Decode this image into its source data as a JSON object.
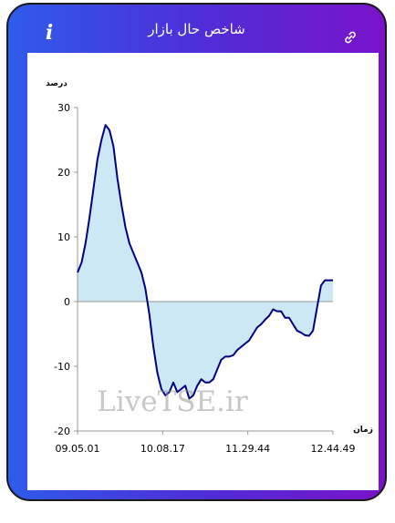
{
  "header": {
    "title": "شاخص حال بازار",
    "info_icon": "info-icon",
    "info_glyph": "i",
    "link_icon": "link-icon"
  },
  "colors": {
    "gradient_start": "#2f5bea",
    "gradient_end": "#7a12c9",
    "line": "#000080",
    "fill": "#cce8f4"
  },
  "watermark": "LiveTSE.ir",
  "chart_data": {
    "type": "area",
    "ylabel": "درصد",
    "xlabel": "زمان",
    "ylim": [
      -20,
      30
    ],
    "yticks": [
      30,
      20,
      10,
      0,
      -10,
      -20
    ],
    "xticks": [
      "09.05.01",
      "10.08.17",
      "11.29.44",
      "12.44.49"
    ],
    "grid": false,
    "series": [
      {
        "x": [
          0,
          1,
          2,
          3,
          4,
          5,
          6,
          7,
          8,
          9,
          10,
          11,
          12,
          13,
          14,
          15,
          16,
          17,
          18,
          19,
          20,
          21,
          22,
          23,
          24,
          25,
          26,
          27,
          28,
          29,
          30,
          31,
          32,
          33,
          34,
          35,
          36,
          37,
          38,
          39,
          40,
          41,
          42,
          43,
          44,
          45,
          46,
          47,
          48,
          49,
          50,
          51,
          52,
          53,
          54,
          55,
          56,
          57,
          58,
          59,
          60,
          61,
          62,
          63,
          64,
          65,
          66,
          67,
          68,
          69,
          70,
          71,
          72,
          73,
          74,
          75,
          76,
          77,
          78,
          79,
          80,
          81,
          82,
          83,
          84,
          85,
          86,
          87,
          88,
          89,
          90,
          91,
          92,
          93,
          94,
          95,
          96,
          97,
          98,
          99,
          100
        ],
        "values": [
          4.5,
          6,
          9,
          13,
          17.5,
          22,
          25,
          27.3,
          26.5,
          24,
          19,
          15,
          11.5,
          9,
          7.5,
          6,
          4.5,
          2,
          -2,
          -7,
          -11,
          -13.5,
          -14.5,
          -14,
          -12.5,
          -14,
          -13.5,
          -13,
          -15,
          -14.5,
          -13,
          -12,
          -12.5,
          -12.5,
          -12,
          -10.5,
          -9,
          -8.5,
          -8.5,
          -8.3,
          -7.5,
          -7,
          -6.5,
          -6,
          -5,
          -4,
          -3.5,
          -2.8,
          -2.2,
          -1.2,
          -1.5,
          -1.5,
          -2.5,
          -2.5,
          -3.5,
          -4.5,
          -4.8,
          -5.2,
          -5.3,
          -4.5,
          -1,
          2.5,
          3.3,
          3.3,
          3.3,
          null,
          null,
          null,
          null,
          null,
          null,
          null,
          null,
          null,
          null,
          null,
          null,
          null,
          null,
          null,
          null,
          null,
          null,
          null,
          null,
          null,
          null,
          null,
          null,
          null,
          null,
          null,
          null,
          null,
          null,
          null,
          null,
          null,
          null,
          null,
          null
        ]
      }
    ]
  }
}
